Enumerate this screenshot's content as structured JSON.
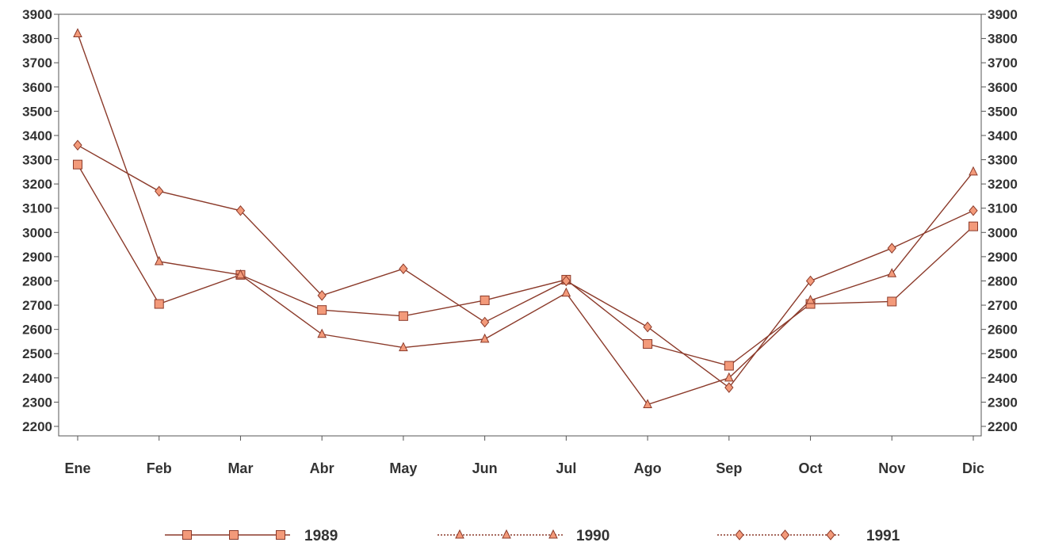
{
  "chart_data": {
    "type": "line",
    "categories": [
      "Ene",
      "Feb",
      "Mar",
      "Abr",
      "May",
      "Jun",
      "Jul",
      "Ago",
      "Sep",
      "Oct",
      "Nov",
      "Dic"
    ],
    "ylim": [
      2200,
      3900
    ],
    "yticks": [
      2200,
      2300,
      2400,
      2500,
      2600,
      2700,
      2800,
      2900,
      3000,
      3100,
      3200,
      3300,
      3400,
      3500,
      3600,
      3700,
      3800,
      3900
    ],
    "grid": false,
    "legend_position": "bottom",
    "series": [
      {
        "name": "1989",
        "marker": "square",
        "line": "solid",
        "values": [
          3280,
          2705,
          2825,
          2680,
          2655,
          2720,
          2805,
          2540,
          2450,
          2705,
          2715,
          3025
        ]
      },
      {
        "name": "1990",
        "marker": "triangle",
        "line": "dotted",
        "values": [
          3820,
          2880,
          2825,
          2580,
          2525,
          2560,
          2750,
          2290,
          2400,
          2720,
          2830,
          3250
        ]
      },
      {
        "name": "1991",
        "marker": "diamond",
        "line": "dotted",
        "values": [
          3360,
          3170,
          3090,
          2740,
          2850,
          2630,
          2800,
          2610,
          2360,
          2800,
          2935,
          3090
        ]
      }
    ]
  },
  "colors": {
    "line": "#8b3a2a",
    "marker_fill": "#f39a7a",
    "marker_stroke": "#8b3a2a",
    "axis": "#555555",
    "text": "#333333"
  }
}
